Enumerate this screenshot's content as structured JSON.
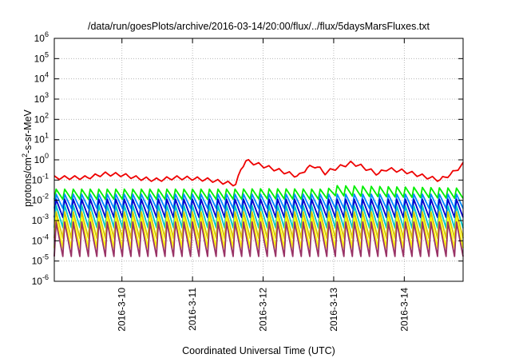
{
  "chart_data": {
    "type": "line",
    "title": "/data/run/goesPlots/archive/2016-03-14/20:00/flux/../flux/5daysMarsFluxes.txt",
    "xlabel": "Coordinated Universal Time (UTC)",
    "ylabel": "protons/cm²-s-sr-MeV",
    "ylabel_parts": {
      "a": "protons/cm",
      "sup": "2",
      "b": "-s-sr-MeV"
    },
    "yscale": "log",
    "ylim": [
      1e-06,
      1000000.0
    ],
    "y_ticks": [
      {
        "base": "10",
        "exp": "-6"
      },
      {
        "base": "10",
        "exp": "-5"
      },
      {
        "base": "10",
        "exp": "-4"
      },
      {
        "base": "10",
        "exp": "-3"
      },
      {
        "base": "10",
        "exp": "-2"
      },
      {
        "base": "10",
        "exp": "-1"
      },
      {
        "base": "10",
        "exp": "0"
      },
      {
        "base": "10",
        "exp": "1"
      },
      {
        "base": "10",
        "exp": "2"
      },
      {
        "base": "10",
        "exp": "3"
      },
      {
        "base": "10",
        "exp": "4"
      },
      {
        "base": "10",
        "exp": "5"
      },
      {
        "base": "10",
        "exp": "6"
      }
    ],
    "xlim": [
      "2016-03-09 01:00",
      "2016-03-14 20:00"
    ],
    "x_ticks": [
      "2016-3-10",
      "2016-3-11",
      "2016-3-12",
      "2016-3-13",
      "2016-3-14"
    ],
    "grid": true,
    "sawtooth_teeth": 48,
    "series": [
      {
        "color": "#ee0000",
        "points": [
          [
            "2016-03-09 01:00",
            0.13
          ],
          [
            "2016-03-09 12:00",
            0.13
          ],
          [
            "2016-03-09 18:00",
            0.2
          ],
          [
            "2016-03-10 00:00",
            0.18
          ],
          [
            "2016-03-10 06:00",
            0.12
          ],
          [
            "2016-03-10 12:00",
            0.1
          ],
          [
            "2016-03-10 18:00",
            0.13
          ],
          [
            "2016-03-11 00:00",
            0.12
          ],
          [
            "2016-03-11 06:00",
            0.1
          ],
          [
            "2016-03-11 12:00",
            0.07
          ],
          [
            "2016-03-11 15:00",
            0.06
          ],
          [
            "2016-03-11 16:00",
            0.25
          ],
          [
            "2016-03-11 18:00",
            0.9
          ],
          [
            "2016-03-12 00:00",
            0.5
          ],
          [
            "2016-03-12 06:00",
            0.28
          ],
          [
            "2016-03-12 12:00",
            0.15
          ],
          [
            "2016-03-12 15:00",
            0.4
          ],
          [
            "2016-03-12 18:00",
            0.5
          ],
          [
            "2016-03-12 21:00",
            0.22
          ],
          [
            "2016-03-13 00:00",
            0.35
          ],
          [
            "2016-03-13 06:00",
            0.7
          ],
          [
            "2016-03-13 09:00",
            0.5
          ],
          [
            "2016-03-13 15:00",
            0.2
          ],
          [
            "2016-03-13 18:00",
            0.35
          ],
          [
            "2016-03-14 00:00",
            0.27
          ],
          [
            "2016-03-14 06:00",
            0.16
          ],
          [
            "2016-03-14 12:00",
            0.1
          ],
          [
            "2016-03-14 16:00",
            0.2
          ],
          [
            "2016-03-14 20:00",
            0.6
          ]
        ]
      },
      {
        "color": "#00ee00",
        "points": [
          [
            "2016-03-09 01:00",
            0.02
          ],
          [
            "2016-03-11 12:00",
            0.02
          ],
          [
            "2016-03-12 00:00",
            0.021
          ],
          [
            "2016-03-12 21:00",
            0.02
          ],
          [
            "2016-03-13 00:00",
            0.03
          ],
          [
            "2016-03-14 20:00",
            0.022
          ]
        ]
      },
      {
        "color": "#0088ff",
        "points": [
          [
            "2016-03-09 01:00",
            0.009
          ],
          [
            "2016-03-14 20:00",
            0.009
          ]
        ]
      },
      {
        "color": "#0000cc",
        "points": [
          [
            "2016-03-09 01:00",
            0.004
          ],
          [
            "2016-03-14 20:00",
            0.004
          ]
        ]
      },
      {
        "color": "#00c8c8",
        "points": [
          [
            "2016-03-09 01:00",
            0.0016
          ],
          [
            "2016-03-14 20:00",
            0.0015
          ]
        ]
      },
      {
        "color": "#d8c800",
        "points": [
          [
            "2016-03-09 01:00",
            0.0006
          ],
          [
            "2016-03-14 20:00",
            0.0006
          ]
        ]
      },
      {
        "color": "#ffff00",
        "points": [
          [
            "2016-03-09 01:00",
            0.00025
          ],
          [
            "2016-03-14 20:00",
            0.00025
          ]
        ]
      },
      {
        "color": "#993366",
        "points": [
          [
            "2016-03-09 01:00",
            0.00012
          ],
          [
            "2016-03-14 20:00",
            0.00012
          ]
        ]
      }
    ]
  }
}
